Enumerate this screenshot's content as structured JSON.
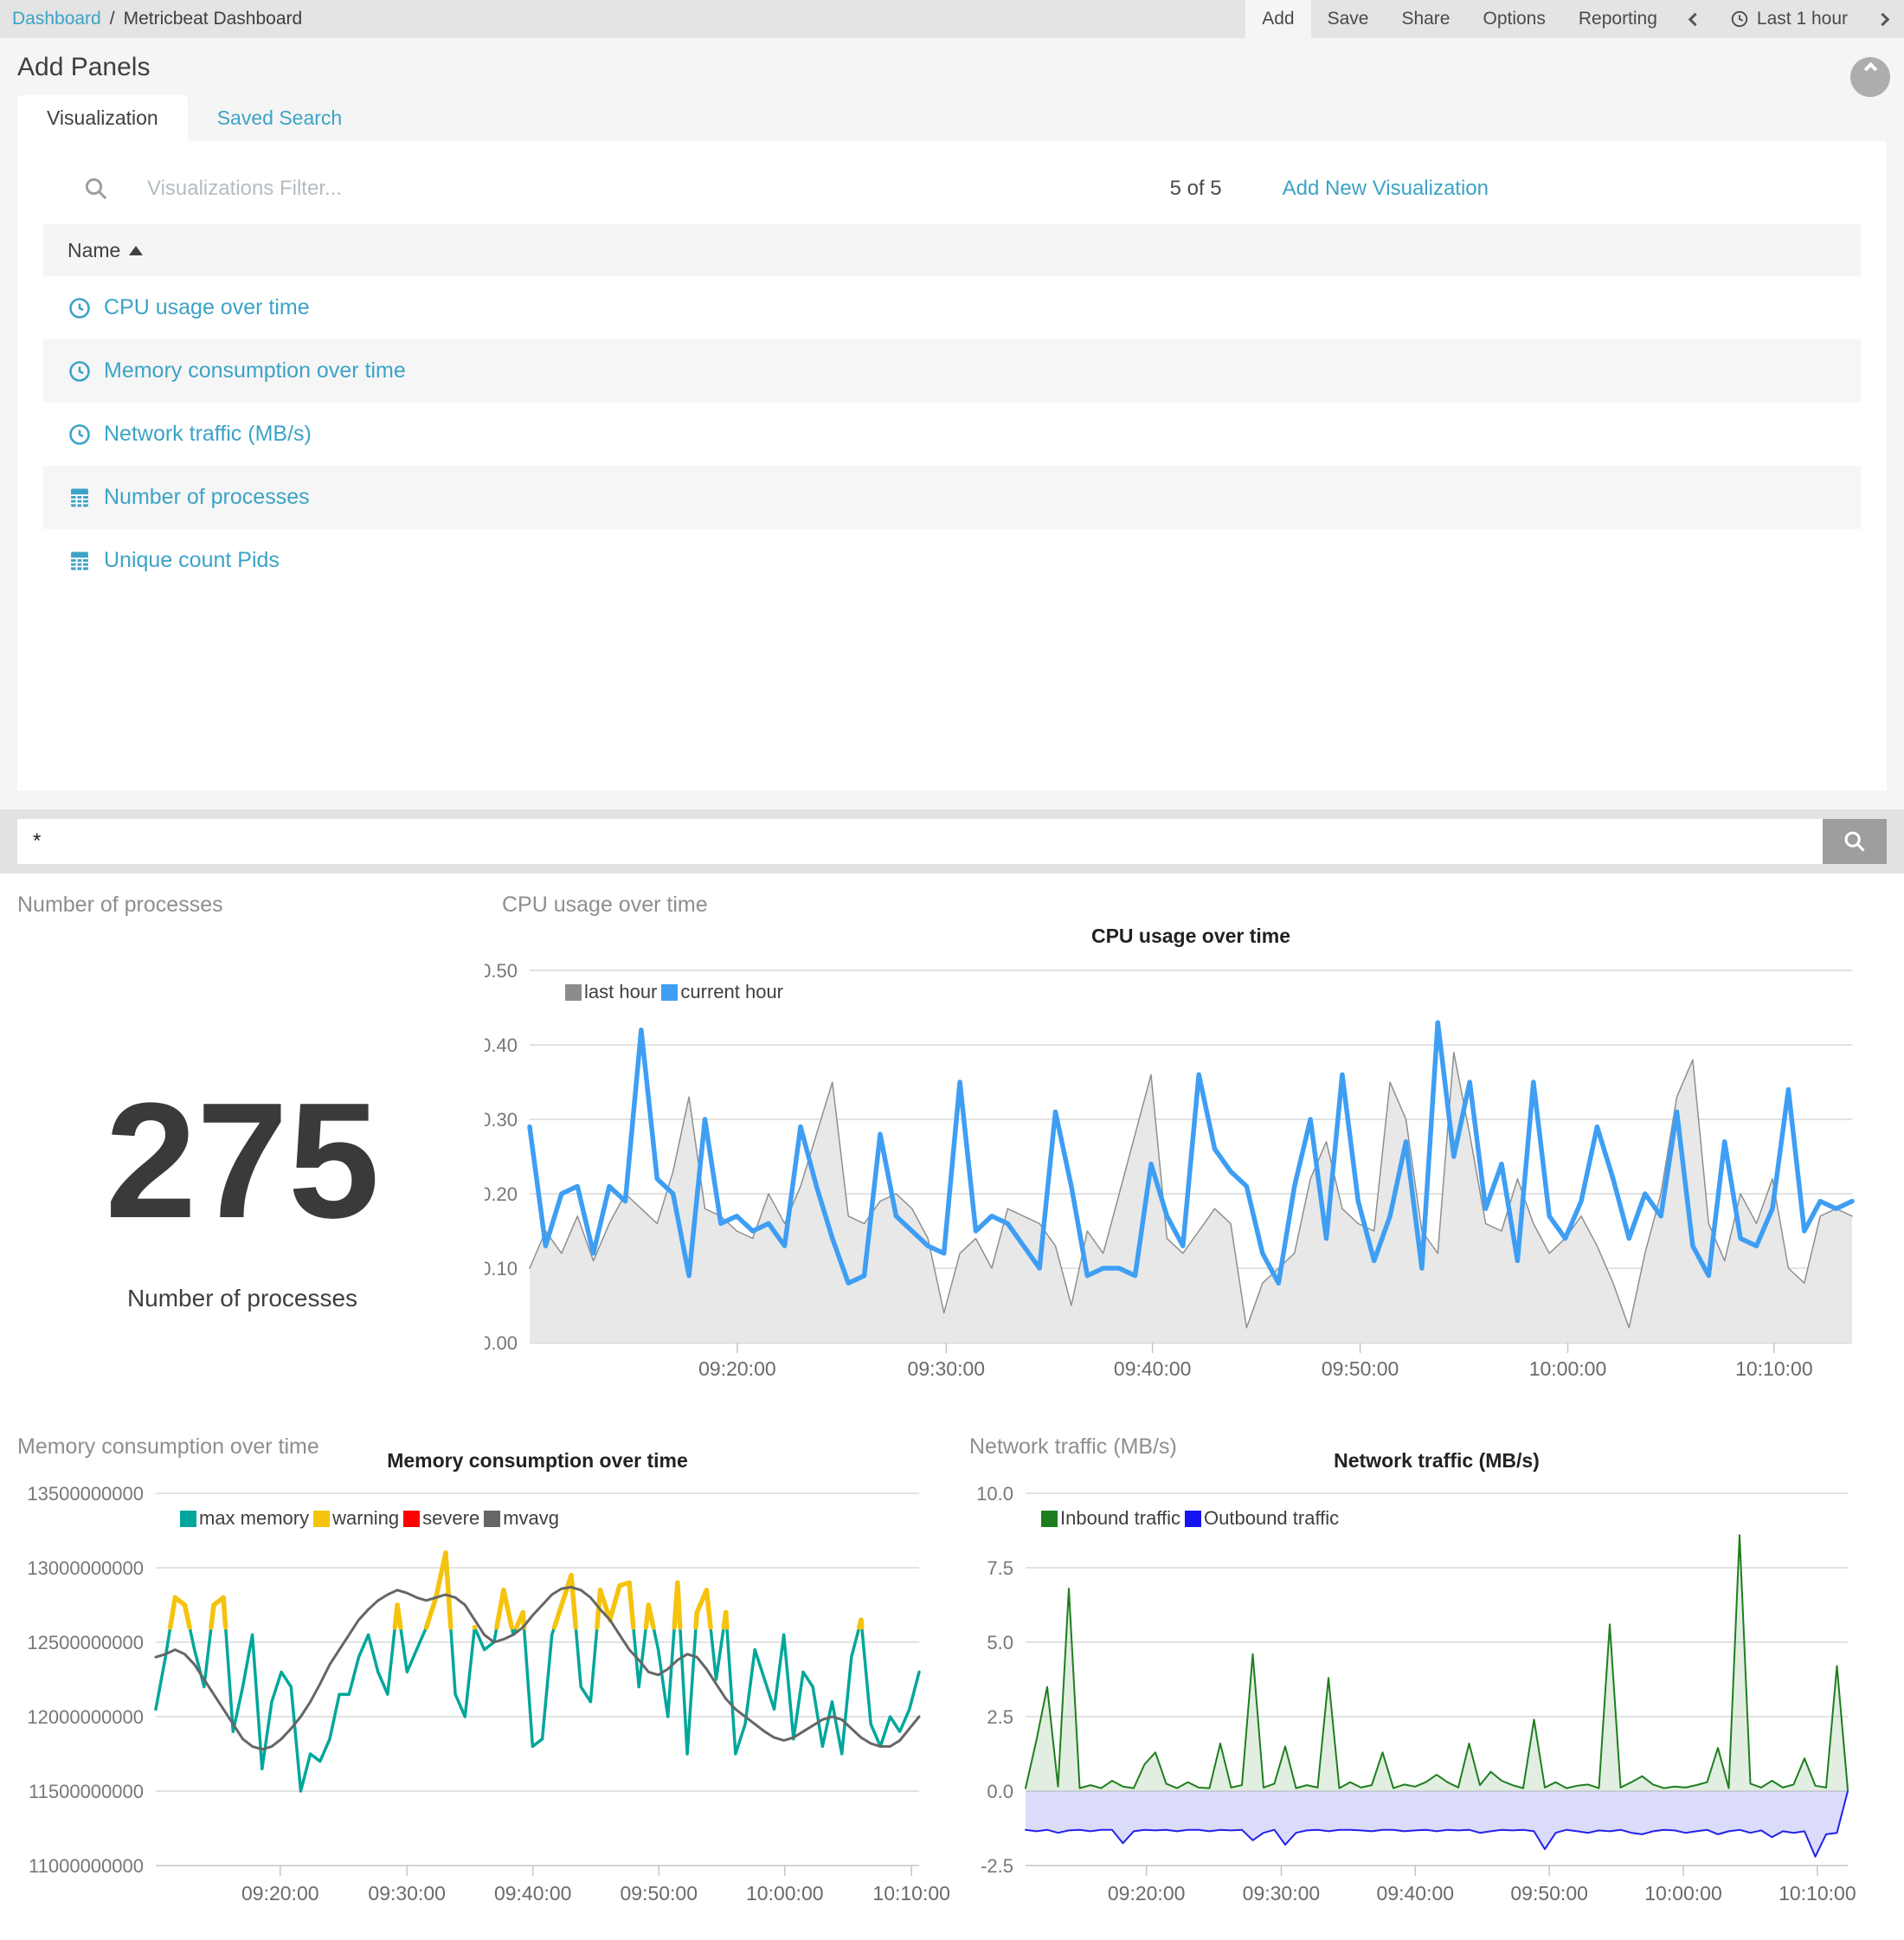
{
  "topbar": {
    "breadcrumb": {
      "link": "Dashboard",
      "sep": "/",
      "current": "Metricbeat Dashboard"
    },
    "menu": [
      "Add",
      "Save",
      "Share",
      "Options",
      "Reporting"
    ],
    "time_label": "Last 1 hour"
  },
  "add_panels": {
    "title": "Add Panels",
    "tabs": [
      "Visualization",
      "Saved Search"
    ],
    "filter_placeholder": "Visualizations Filter...",
    "count": "5 of 5",
    "add_new": "Add New Visualization",
    "table": {
      "header": "Name",
      "rows": [
        {
          "icon": "clock",
          "label": "CPU usage over time"
        },
        {
          "icon": "clock",
          "label": "Memory consumption over time"
        },
        {
          "icon": "clock",
          "label": "Network traffic (MB/s)"
        },
        {
          "icon": "table",
          "label": "Number of processes"
        },
        {
          "icon": "table",
          "label": "Unique count Pids"
        }
      ]
    }
  },
  "query": {
    "value": "*"
  },
  "panels": {
    "processes": "Number of processes",
    "cpu": "CPU usage over time",
    "memory": "Memory consumption over time",
    "network": "Network traffic (MB/s)"
  },
  "colors": {
    "link_teal": "#3ca3c6",
    "cpu_last_hour": "#8c8c8c",
    "cpu_current_hour": "#3e9ef4",
    "mem_max": "#00a69b",
    "mem_warning": "#f5c30e",
    "mem_severe": "#ff0000",
    "mem_mvavg": "#666666",
    "net_inbound": "#1e7e1e",
    "net_outbound": "#1414f0"
  },
  "chart_data": [
    {
      "id": "cpu-usage",
      "type": "line",
      "title": "CPU usage over time",
      "ylim": [
        0,
        0.5
      ],
      "grid": true,
      "legend_position": "top-left",
      "x_ticks": [
        "09:20:00",
        "09:30:00",
        "09:40:00",
        "09:50:00",
        "10:00:00",
        "10:10:00"
      ],
      "y_ticks": [
        {
          "label": "0.50",
          "value": 0.5
        },
        {
          "label": "0.40",
          "value": 0.4
        },
        {
          "label": "0.30",
          "value": 0.3
        },
        {
          "label": "0.20",
          "value": 0.2
        },
        {
          "label": "0.10",
          "value": 0.1
        },
        {
          "label": "0.00",
          "value": 0
        }
      ],
      "series": [
        {
          "name": "last hour",
          "color": "#8c8c8c",
          "stroke": "#8f8f8f",
          "width": 1.5,
          "fill": "#e8e8e8",
          "baseline": 0,
          "values": [
            0.1,
            0.15,
            0.12,
            0.17,
            0.11,
            0.16,
            0.2,
            0.18,
            0.16,
            0.23,
            0.33,
            0.18,
            0.17,
            0.15,
            0.14,
            0.2,
            0.16,
            0.21,
            0.28,
            0.35,
            0.17,
            0.16,
            0.19,
            0.2,
            0.18,
            0.14,
            0.04,
            0.12,
            0.14,
            0.1,
            0.18,
            0.17,
            0.16,
            0.13,
            0.05,
            0.15,
            0.12,
            0.2,
            0.28,
            0.36,
            0.14,
            0.12,
            0.15,
            0.18,
            0.16,
            0.02,
            0.08,
            0.1,
            0.12,
            0.22,
            0.27,
            0.18,
            0.16,
            0.15,
            0.35,
            0.3,
            0.15,
            0.12,
            0.39,
            0.28,
            0.16,
            0.15,
            0.22,
            0.16,
            0.12,
            0.14,
            0.17,
            0.13,
            0.08,
            0.02,
            0.12,
            0.2,
            0.33,
            0.38,
            0.16,
            0.11,
            0.2,
            0.16,
            0.22,
            0.1,
            0.08,
            0.17,
            0.18,
            0.17
          ]
        },
        {
          "name": "current hour",
          "color": "#3e9ef4",
          "stroke": "#3e9ef4",
          "width": 5.5,
          "values": [
            0.29,
            0.13,
            0.2,
            0.21,
            0.12,
            0.21,
            0.19,
            0.42,
            0.22,
            0.2,
            0.09,
            0.3,
            0.16,
            0.17,
            0.15,
            0.16,
            0.13,
            0.29,
            0.21,
            0.14,
            0.08,
            0.09,
            0.28,
            0.17,
            0.15,
            0.13,
            0.12,
            0.35,
            0.15,
            0.17,
            0.16,
            0.13,
            0.1,
            0.31,
            0.21,
            0.09,
            0.1,
            0.1,
            0.09,
            0.24,
            0.17,
            0.13,
            0.36,
            0.26,
            0.23,
            0.21,
            0.12,
            0.08,
            0.21,
            0.3,
            0.14,
            0.36,
            0.19,
            0.11,
            0.17,
            0.27,
            0.1,
            0.43,
            0.25,
            0.35,
            0.18,
            0.24,
            0.11,
            0.35,
            0.17,
            0.14,
            0.19,
            0.29,
            0.22,
            0.14,
            0.2,
            0.17,
            0.31,
            0.13,
            0.09,
            0.27,
            0.14,
            0.13,
            0.18,
            0.34,
            0.15,
            0.19,
            0.18,
            0.19
          ]
        }
      ]
    },
    {
      "id": "memory-consumption",
      "type": "line",
      "title": "Memory consumption over time",
      "value_unit": "bytes x 1e9",
      "ylim": [
        11.0,
        13.5
      ],
      "grid": true,
      "legend_position": "top-left",
      "x_ticks": [
        "09:20:00",
        "09:30:00",
        "09:40:00",
        "09:50:00",
        "10:00:00",
        "10:10:00"
      ],
      "y_ticks": [
        {
          "label": "13500000000",
          "value": 13.5
        },
        {
          "label": "13000000000",
          "value": 13.0
        },
        {
          "label": "12500000000",
          "value": 12.5
        },
        {
          "label": "12000000000",
          "value": 12.0
        },
        {
          "label": "11500000000",
          "value": 11.5
        },
        {
          "label": "11000000000",
          "value": 11.0
        }
      ],
      "series": [
        {
          "name": "max memory",
          "color": "#00a69b",
          "stroke": "#00a69b",
          "width": 3.5,
          "values": [
            12.05,
            12.4,
            12.8,
            12.75,
            12.45,
            12.2,
            12.75,
            12.8,
            11.9,
            12.2,
            12.55,
            11.65,
            12.1,
            12.3,
            12.2,
            11.5,
            11.75,
            11.7,
            11.85,
            12.15,
            12.15,
            12.4,
            12.55,
            12.3,
            12.15,
            12.75,
            12.3,
            12.45,
            12.6,
            12.8,
            13.1,
            12.15,
            12.0,
            12.6,
            12.45,
            12.5,
            12.85,
            12.55,
            12.7,
            11.8,
            11.85,
            12.55,
            12.75,
            12.95,
            12.2,
            12.1,
            12.85,
            12.65,
            12.88,
            12.9,
            12.2,
            12.75,
            12.45,
            12.0,
            12.9,
            11.75,
            12.7,
            12.85,
            12.25,
            12.7,
            11.75,
            11.95,
            12.45,
            12.25,
            12.05,
            12.55,
            11.85,
            12.3,
            12.2,
            11.8,
            12.1,
            11.75,
            12.4,
            12.65,
            11.95,
            11.8,
            12.0,
            11.9,
            12.05,
            12.3
          ]
        },
        {
          "name": "warning",
          "color": "#f5c30e",
          "stroke": "#f5c30e",
          "width": 5.5,
          "overlay_of": "max memory",
          "threshold": 12.6
        },
        {
          "name": "severe",
          "color": "#ff0000",
          "stroke": "#ff0000",
          "width": 5.5,
          "overlay_of": "max memory",
          "threshold": 13.5
        },
        {
          "name": "mvavg",
          "color": "#666666",
          "stroke": "#666666",
          "width": 3,
          "values": [
            12.4,
            12.42,
            12.45,
            12.42,
            12.35,
            12.25,
            12.15,
            12.05,
            11.95,
            11.85,
            11.8,
            11.78,
            11.8,
            11.85,
            11.92,
            12.0,
            12.1,
            12.22,
            12.35,
            12.45,
            12.55,
            12.65,
            12.72,
            12.78,
            12.82,
            12.85,
            12.83,
            12.8,
            12.78,
            12.8,
            12.82,
            12.8,
            12.75,
            12.65,
            12.55,
            12.5,
            12.52,
            12.55,
            12.6,
            12.68,
            12.75,
            12.82,
            12.86,
            12.87,
            12.85,
            12.8,
            12.72,
            12.65,
            12.55,
            12.45,
            12.38,
            12.3,
            12.28,
            12.32,
            12.38,
            12.42,
            12.4,
            12.32,
            12.22,
            12.12,
            12.05,
            12.0,
            11.95,
            11.9,
            11.86,
            11.84,
            11.86,
            11.9,
            11.94,
            11.98,
            12.0,
            11.98,
            11.92,
            11.86,
            11.82,
            11.8,
            11.8,
            11.84,
            11.92,
            12.0
          ]
        }
      ]
    },
    {
      "id": "network-traffic",
      "type": "area",
      "title": "Network traffic (MB/s)",
      "ylim": [
        -2.5,
        10.0
      ],
      "grid": true,
      "legend_position": "top-left",
      "x_ticks": [
        "09:20:00",
        "09:30:00",
        "09:40:00",
        "09:50:00",
        "10:00:00",
        "10:10:00"
      ],
      "y_ticks": [
        {
          "label": "10.0",
          "value": 10
        },
        {
          "label": "7.5",
          "value": 7.5
        },
        {
          "label": "5.0",
          "value": 5
        },
        {
          "label": "2.5",
          "value": 2.5
        },
        {
          "label": "0.0",
          "value": 0
        },
        {
          "label": "-2.5",
          "value": -2.5
        }
      ],
      "series": [
        {
          "name": "Inbound traffic",
          "color": "#1e7e1e",
          "stroke": "#1e7e1e",
          "width": 2,
          "fill": "rgba(30,126,30,0.13)",
          "baseline": 0,
          "values": [
            0.1,
            1.7,
            3.5,
            0.15,
            6.8,
            0.1,
            0.2,
            0.1,
            0.35,
            0.15,
            0.1,
            0.9,
            1.3,
            0.25,
            0.1,
            0.3,
            0.12,
            0.1,
            1.6,
            0.12,
            0.2,
            4.6,
            0.12,
            0.25,
            1.5,
            0.1,
            0.2,
            0.12,
            3.8,
            0.1,
            0.3,
            0.12,
            0.2,
            1.3,
            0.1,
            0.22,
            0.15,
            0.3,
            0.55,
            0.3,
            0.12,
            1.6,
            0.2,
            0.65,
            0.35,
            0.2,
            0.1,
            2.4,
            0.12,
            0.3,
            0.1,
            0.18,
            0.22,
            0.1,
            5.6,
            0.12,
            0.3,
            0.5,
            0.22,
            0.1,
            0.15,
            0.12,
            0.2,
            0.3,
            1.45,
            0.1,
            8.6,
            0.25,
            0.12,
            0.35,
            0.12,
            0.22,
            1.1,
            0.18,
            0.12,
            4.2,
            0.05
          ]
        },
        {
          "name": "Outbound traffic",
          "color": "#1414f0",
          "stroke": "#2222e8",
          "width": 2,
          "fill": "rgba(90,90,235,0.22)",
          "baseline": 0,
          "values": [
            -1.3,
            -1.35,
            -1.3,
            -1.4,
            -1.32,
            -1.3,
            -1.35,
            -1.3,
            -1.3,
            -1.75,
            -1.35,
            -1.3,
            -1.32,
            -1.3,
            -1.35,
            -1.3,
            -1.3,
            -1.35,
            -1.3,
            -1.32,
            -1.3,
            -1.65,
            -1.4,
            -1.3,
            -1.8,
            -1.4,
            -1.32,
            -1.3,
            -1.35,
            -1.3,
            -1.3,
            -1.32,
            -1.35,
            -1.3,
            -1.3,
            -1.35,
            -1.32,
            -1.3,
            -1.35,
            -1.3,
            -1.32,
            -1.3,
            -1.4,
            -1.35,
            -1.3,
            -1.32,
            -1.3,
            -1.35,
            -1.95,
            -1.4,
            -1.3,
            -1.35,
            -1.4,
            -1.32,
            -1.35,
            -1.3,
            -1.4,
            -1.45,
            -1.35,
            -1.3,
            -1.32,
            -1.4,
            -1.35,
            -1.3,
            -1.45,
            -1.35,
            -1.3,
            -1.4,
            -1.32,
            -1.55,
            -1.35,
            -1.4,
            -1.35,
            -2.2,
            -1.45,
            -1.4,
            0.0
          ]
        }
      ]
    },
    {
      "id": "number-of-processes",
      "type": "metric",
      "title": "Number of processes",
      "value": "275",
      "label": "Number of processes"
    }
  ]
}
